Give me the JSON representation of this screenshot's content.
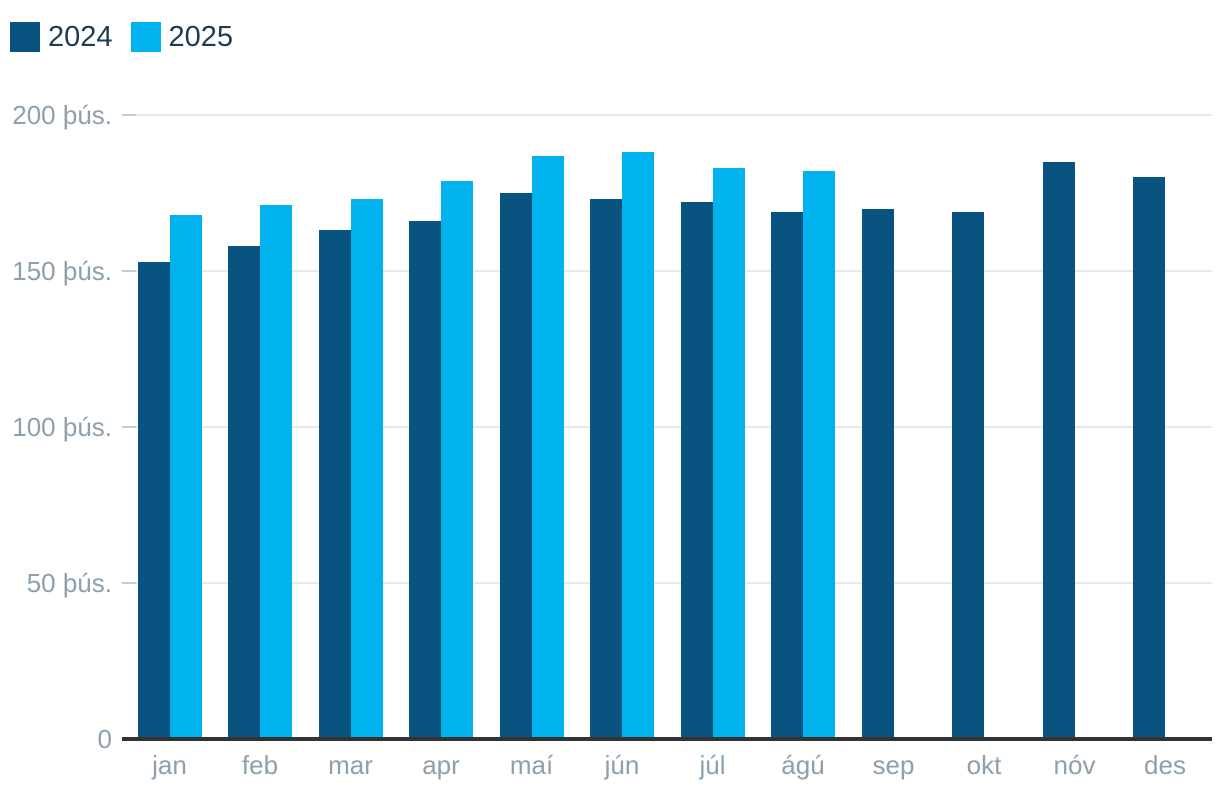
{
  "legend": {
    "items": [
      {
        "label": "2024",
        "color": "#095380"
      },
      {
        "label": "2025",
        "color": "#00b3ee"
      }
    ]
  },
  "chart_data": {
    "type": "bar",
    "title": "",
    "categories": [
      "jan",
      "feb",
      "mar",
      "apr",
      "maí",
      "jún",
      "júl",
      "ágú",
      "sep",
      "okt",
      "nóv",
      "des"
    ],
    "series": [
      {
        "name": "2024",
        "color": "#095380",
        "values": [
          153,
          158,
          163,
          166,
          175,
          173,
          172,
          169,
          170,
          169,
          185,
          180
        ]
      },
      {
        "name": "2025",
        "color": "#00b3ee",
        "values": [
          168,
          171,
          173,
          179,
          187,
          188,
          183,
          182,
          null,
          null,
          null,
          null
        ]
      }
    ],
    "unit": "þús.",
    "y_ticks": [
      {
        "value": 0,
        "label": "0"
      },
      {
        "value": 50,
        "label": "50 þús."
      },
      {
        "value": 100,
        "label": "100 þús."
      },
      {
        "value": 150,
        "label": "150 þús."
      },
      {
        "value": 200,
        "label": "200 þús."
      }
    ],
    "ylim": [
      0,
      200
    ],
    "xlabel": "",
    "ylabel": "",
    "grid": "horizontal",
    "legend_position": "top-left",
    "colors": {
      "grid": "#e9e9e9",
      "tick": "#c3ccd2",
      "axis_line": "#333333",
      "axis_text": "#8da0ac",
      "legend_text": "#1e3c50",
      "background": "#ffffff"
    }
  }
}
